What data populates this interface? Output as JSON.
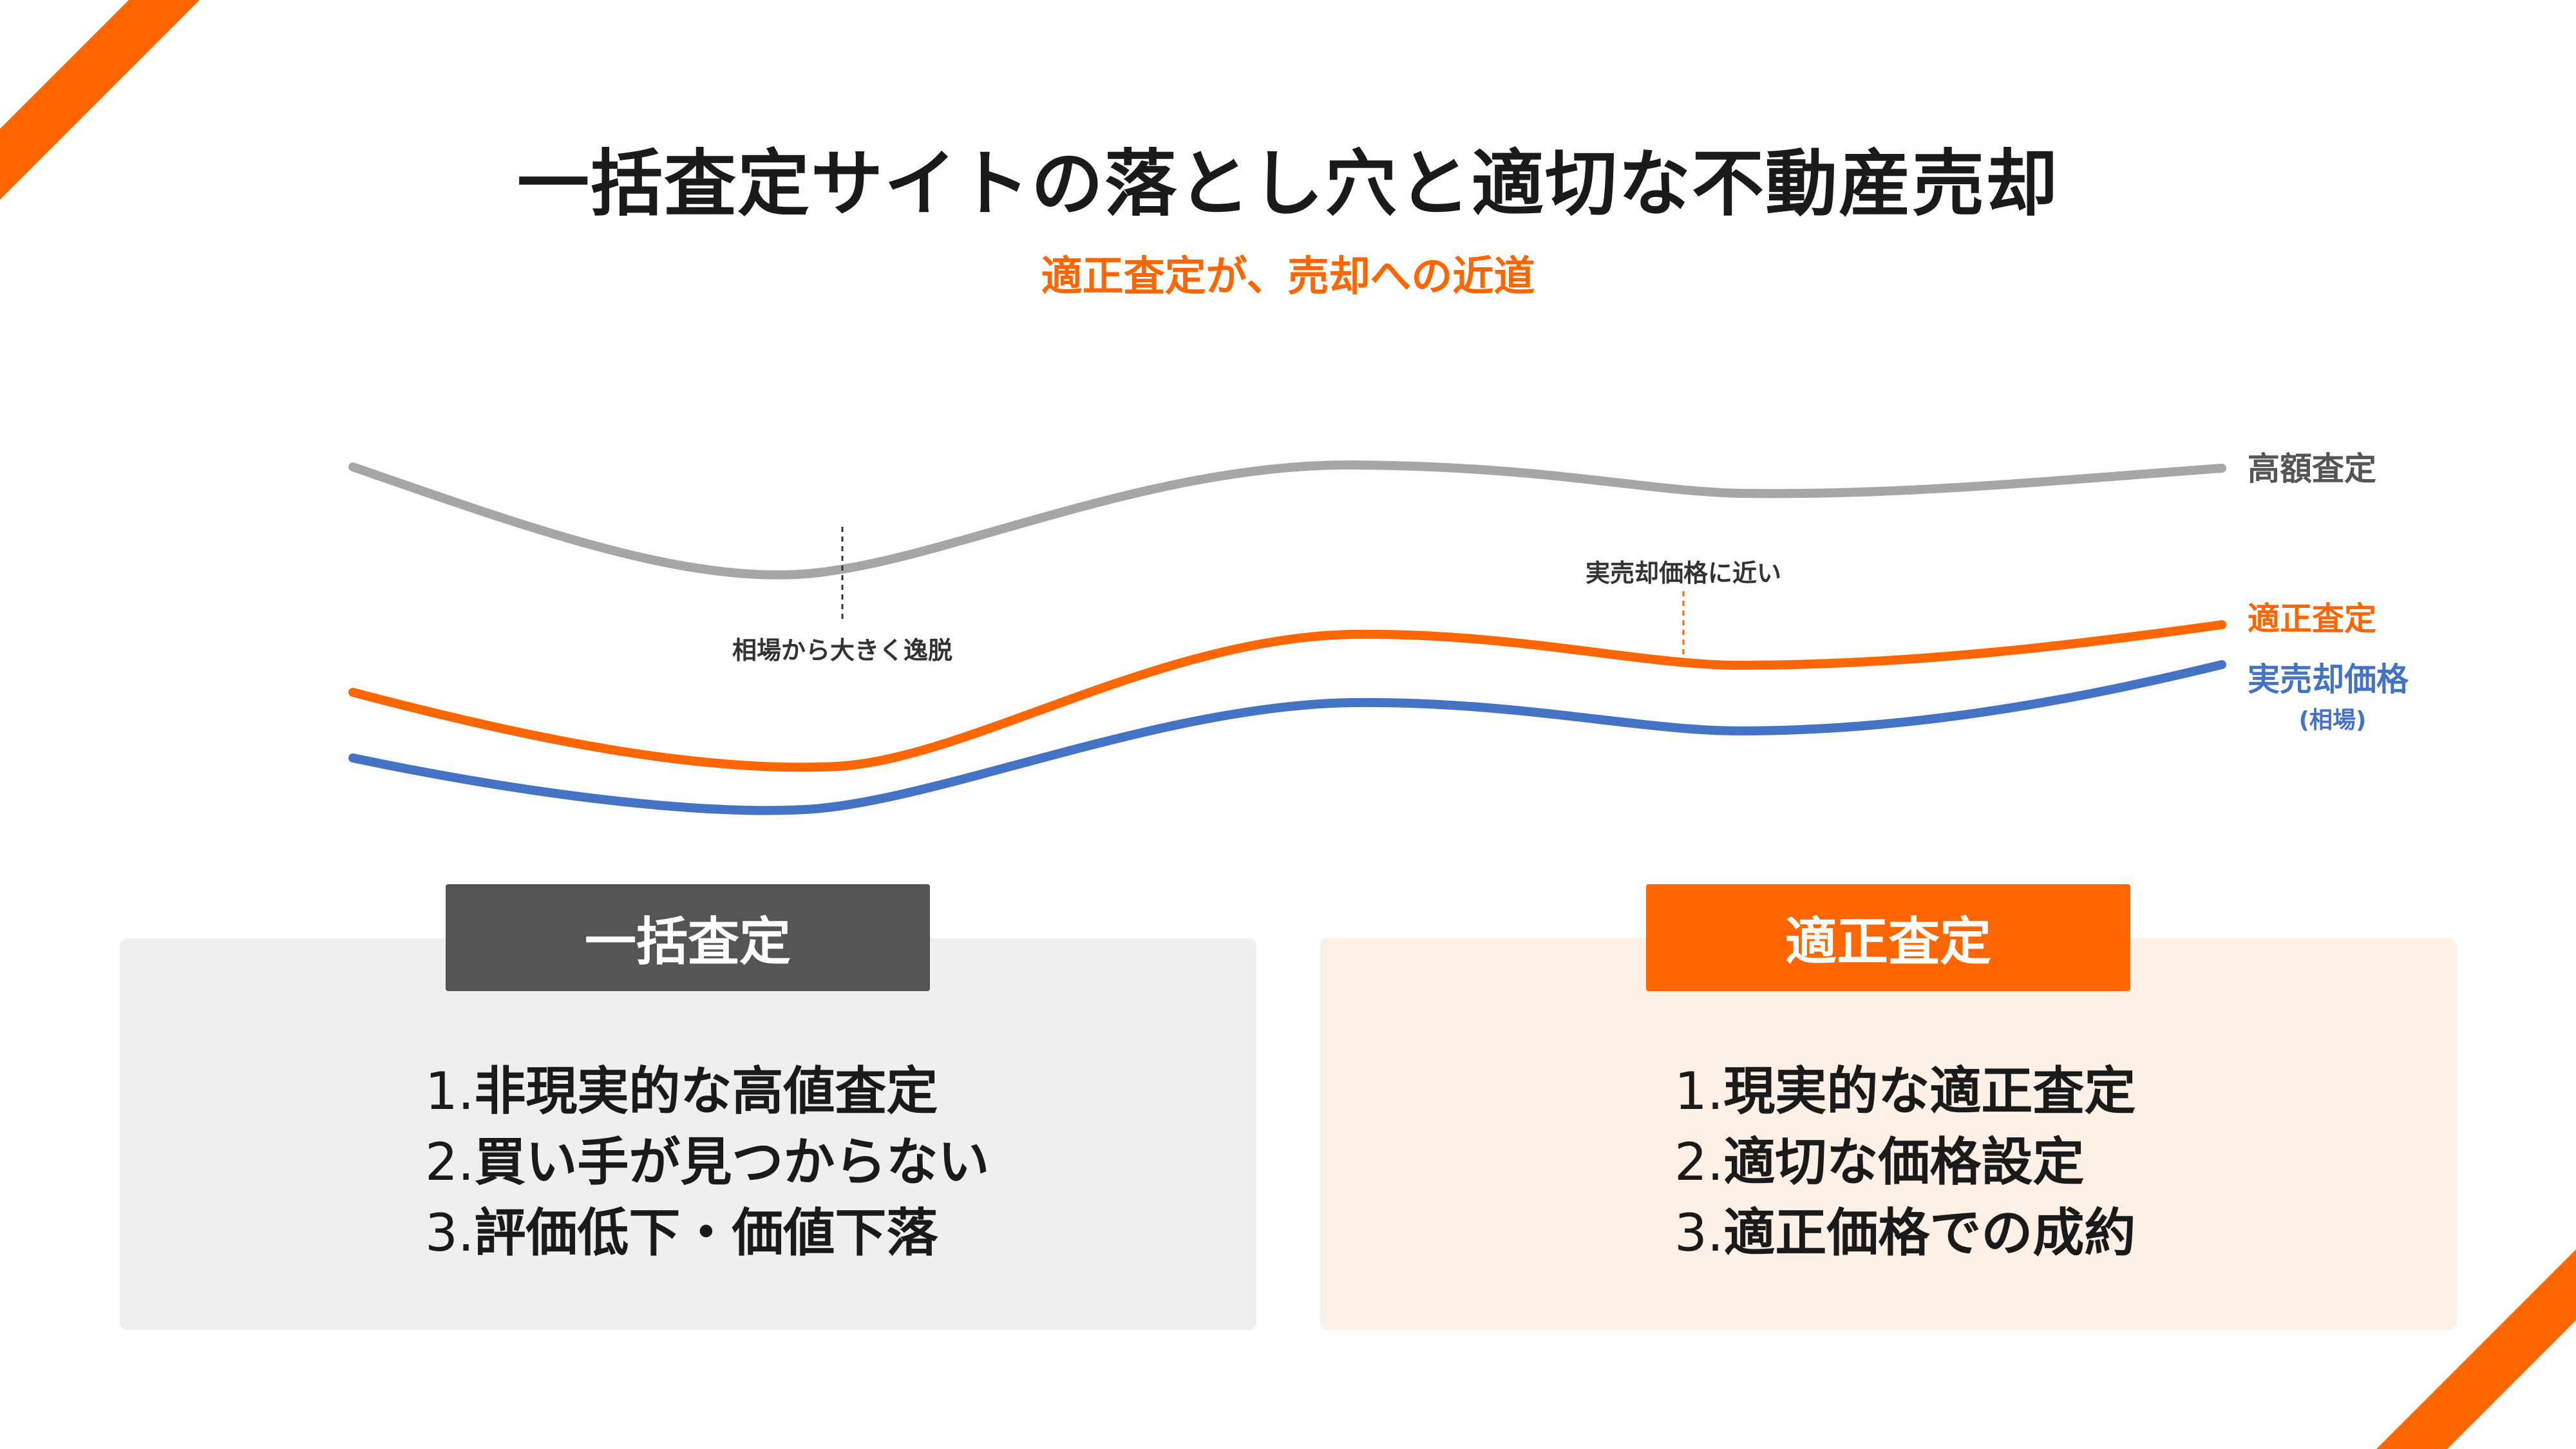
{
  "header": {
    "title": "一括査定サイトの落とし穴と適切な不動産売却",
    "subtitle": "適正査定が、売却への近道"
  },
  "diagram": {
    "labels": {
      "high_valuation": "高額査定",
      "proper_valuation": "適正査定",
      "actual_price": "実売却価格",
      "actual_price_note": "(相場)"
    },
    "annotations": {
      "deviation": "相場から大きく逸脱",
      "near_actual": "実売却価格に近い"
    },
    "colors": {
      "high_valuation": "#a6a6a6",
      "proper_valuation": "#ff6600",
      "actual_price": "#4472c4"
    }
  },
  "left_panel": {
    "tab": "一括査定",
    "items": [
      {
        "num": "1.",
        "text": "非現実的な高値査定"
      },
      {
        "num": "2.",
        "text": "買い手が見つからない"
      },
      {
        "num": "3.",
        "text": "評価低下・価値下落"
      }
    ]
  },
  "right_panel": {
    "tab": "適正査定",
    "items": [
      {
        "num": "1.",
        "text": "現実的な適正査定"
      },
      {
        "num": "2.",
        "text": "適切な価格設定"
      },
      {
        "num": "3.",
        "text": "適正価格での成約"
      }
    ]
  }
}
